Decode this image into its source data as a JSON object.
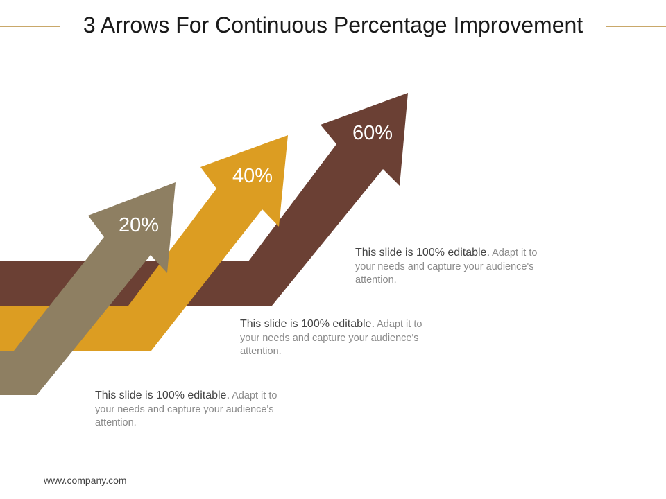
{
  "title": "3 Arrows For Continuous Percentage Improvement",
  "colors": {
    "arrow_brown": "#6b4034",
    "arrow_gold": "#dc9d22",
    "arrow_taupe": "#8e7f62",
    "accent_rule": "#c9a86a"
  },
  "arrows": [
    {
      "label": "20%",
      "color": "arrow_taupe"
    },
    {
      "label": "40%",
      "color": "arrow_gold"
    },
    {
      "label": "60%",
      "color": "arrow_brown"
    }
  ],
  "texts": [
    {
      "lead": "This slide is 100% editable.",
      "body": " Adapt it to your needs and capture your audience's attention."
    },
    {
      "lead": "This slide is 100% editable.",
      "body": " Adapt it to your needs and capture your audience's attention."
    },
    {
      "lead": "This slide is 100% editable.",
      "body": " Adapt it to your needs and capture your audience's attention."
    }
  ],
  "footer": "www.company.com"
}
